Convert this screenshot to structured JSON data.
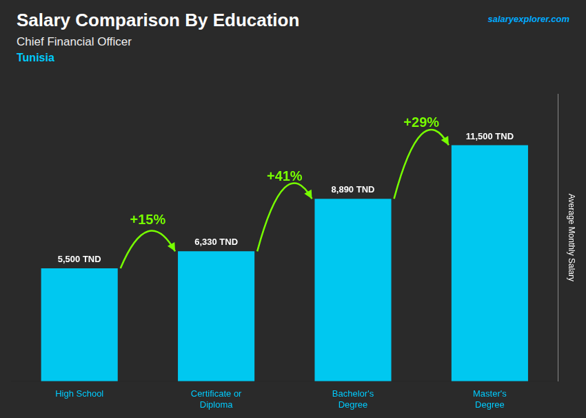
{
  "chart_data": {
    "type": "bar",
    "title": "Salary Comparison By Education",
    "subtitle": "Chief Financial Officer",
    "annotations": [
      {
        "text": "Tunisia"
      },
      {
        "text": "salaryexplorer.com"
      },
      {
        "text": "+15%",
        "from": "High School",
        "to": "Certificate or\nDiploma"
      },
      {
        "text": "+41%",
        "from": "Certificate or\nDiploma",
        "to": "Bachelor's\nDegree"
      },
      {
        "text": "+29%",
        "from": "Bachelor's\nDegree",
        "to": "Master's\nDegree"
      }
    ],
    "y_label": "Average Monthly Salary",
    "categories": [
      "High School",
      "Certificate or\nDiploma",
      "Bachelor's\nDegree",
      "Master's\nDegree"
    ],
    "values": [
      5500,
      6330,
      8890,
      11500
    ],
    "value_labels": [
      "5,500 TND",
      "6,330 TND",
      "8,890 TND",
      "11,500 TND"
    ],
    "data_labels": true,
    "color": "#00c8f0",
    "ylim": [
      0,
      14000
    ],
    "grid": false,
    "tick_labels": "x",
    "legend": false
  }
}
